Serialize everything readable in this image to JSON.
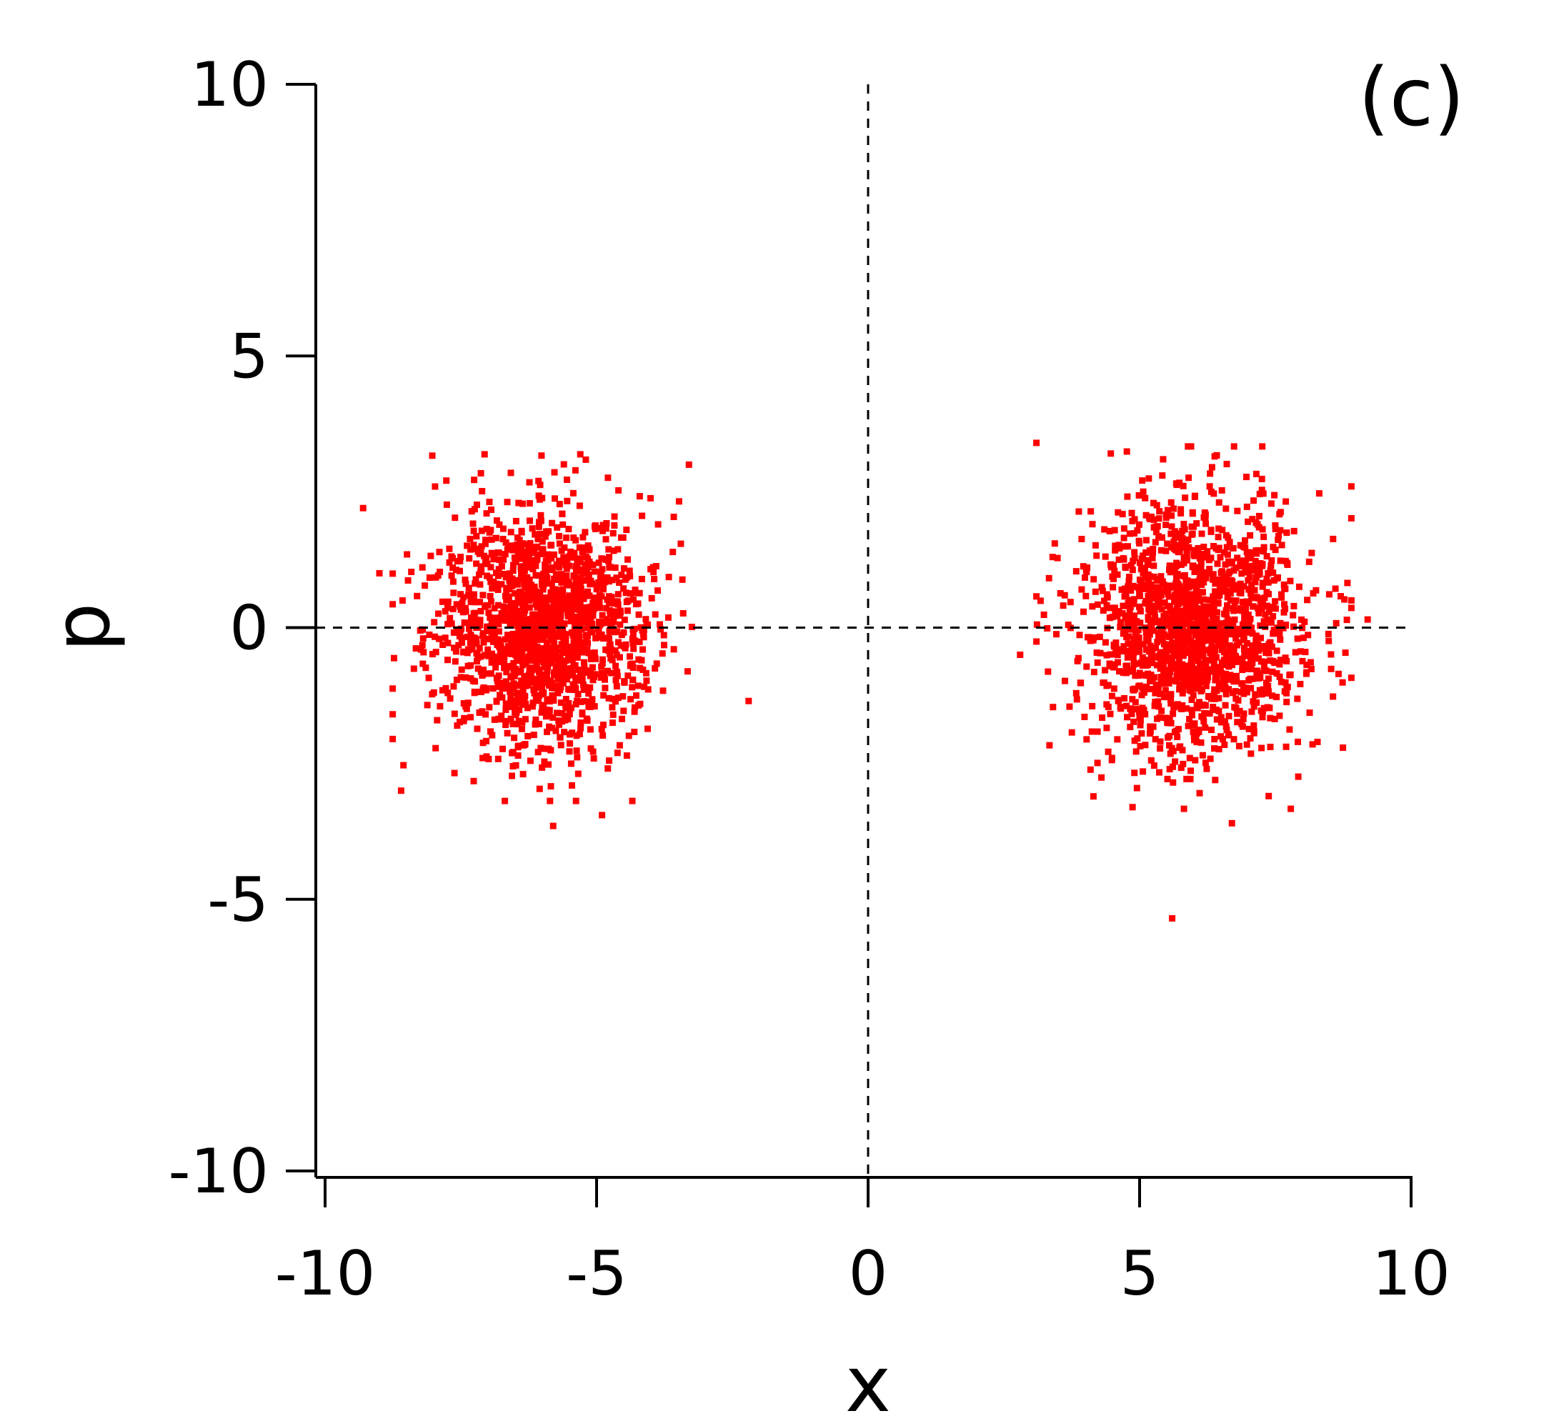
{
  "chart_data": {
    "type": "scatter",
    "panel_label": "(c)",
    "xlabel": "x",
    "ylabel": "p",
    "xlim": [
      -10,
      10
    ],
    "ylim": [
      -10,
      10
    ],
    "x_ticks": [
      {
        "value": -10,
        "label": "-10"
      },
      {
        "value": -5,
        "label": "-5"
      },
      {
        "value": 0,
        "label": "0"
      },
      {
        "value": 5,
        "label": "5"
      },
      {
        "value": 10,
        "label": "10"
      }
    ],
    "y_ticks": [
      {
        "value": 10,
        "label": "10"
      },
      {
        "value": 5,
        "label": "5"
      },
      {
        "value": 0,
        "label": "0"
      },
      {
        "value": -5,
        "label": "-5"
      },
      {
        "value": -10,
        "label": "-10"
      }
    ],
    "grid": false,
    "reference_lines": {
      "x": 0,
      "y": 0,
      "style": "dashed"
    },
    "marker_color": "#ff0000",
    "clusters": [
      {
        "center": [
          -6.0,
          0.0
        ],
        "sd": [
          0.95,
          1.1
        ],
        "count": 1700
      },
      {
        "center": [
          6.0,
          0.0
        ],
        "sd": [
          1.0,
          1.15
        ],
        "count": 1700
      }
    ],
    "outliers": [
      [
        -9.3,
        2.2
      ],
      [
        -8.6,
        -3.0
      ],
      [
        -2.2,
        -1.35
      ],
      [
        -5.8,
        -3.65
      ],
      [
        -4.9,
        -3.45
      ],
      [
        3.1,
        3.4
      ],
      [
        5.6,
        -5.35
      ],
      [
        9.2,
        0.15
      ],
      [
        8.9,
        2.6
      ],
      [
        2.8,
        -0.5
      ],
      [
        6.7,
        -3.6
      ],
      [
        -9.0,
        1.0
      ],
      [
        -3.3,
        3.0
      ]
    ]
  }
}
